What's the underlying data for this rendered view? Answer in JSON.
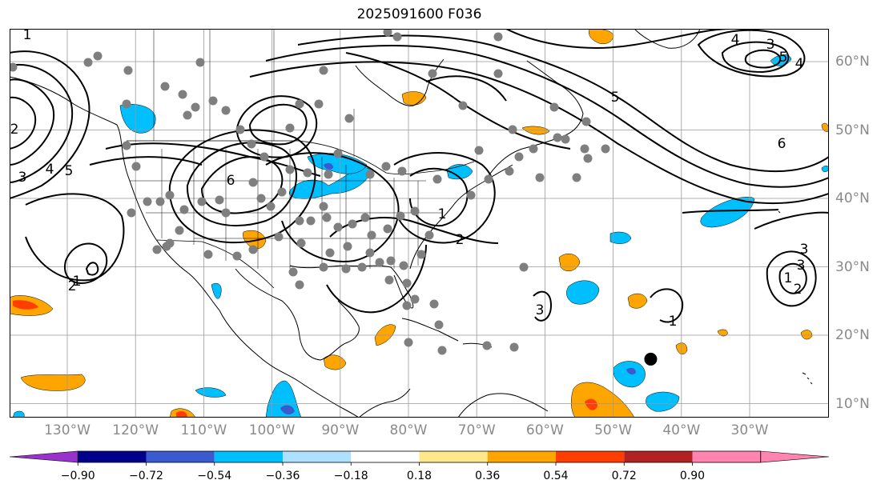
{
  "title": "2025091600 F036",
  "colors": {
    "levels": [
      "#9932cc",
      "#00008b",
      "#3a5bd0",
      "#00bfff",
      "#aee0ff",
      "#ffffff",
      "#ffe88a",
      "#ffa500",
      "#ff3e00",
      "#b22222",
      "#ff85b0"
    ],
    "grid": "#999999",
    "contour": "#000000",
    "dots": "#7f7f7f",
    "marker": "#000000"
  },
  "longitude_labels": [
    "130°W",
    "120°W",
    "110°W",
    "100°W",
    "90°W",
    "80°W",
    "70°W",
    "60°W",
    "50°W",
    "40°W",
    "30°W"
  ],
  "latitude_labels": [
    "60°N",
    "50°N",
    "40°N",
    "30°N",
    "20°N",
    "10°N"
  ],
  "colorbar": {
    "ticks": [
      "−0.90",
      "−0.72",
      "−0.54",
      "−0.36",
      "−0.18",
      "0.18",
      "0.36",
      "0.54",
      "0.72",
      "0.90"
    ],
    "extend": "both"
  },
  "contour_labels": [
    "1",
    "2",
    "3",
    "4",
    "5",
    "6",
    "1",
    "2",
    "3",
    "1",
    "2",
    "3",
    "1",
    "1",
    "2",
    "3",
    "4",
    "5",
    "3",
    "4",
    "5",
    "6"
  ],
  "storm_marker": {
    "lon": -44.5,
    "lat": 16.5
  }
}
